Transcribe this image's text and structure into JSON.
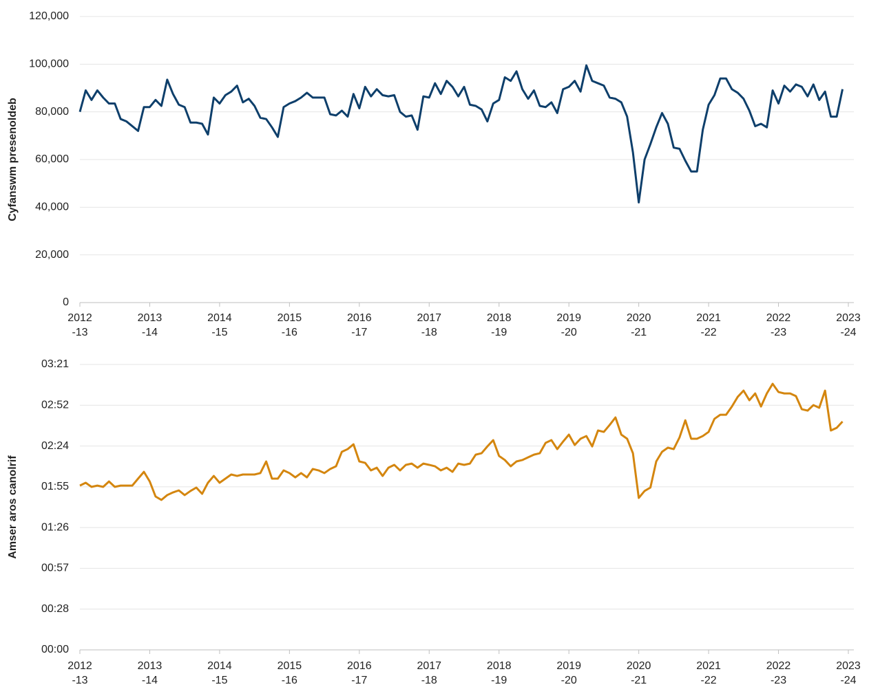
{
  "chart_data": [
    {
      "type": "line",
      "ylabel": "Cyfanswm presenoldeb",
      "xlim": [
        0,
        132
      ],
      "xticks": [
        {
          "value": 0,
          "label": "2012-13"
        },
        {
          "value": 12,
          "label": "2013-14"
        },
        {
          "value": 24,
          "label": "2014-15"
        },
        {
          "value": 36,
          "label": "2015-16"
        },
        {
          "value": 48,
          "label": "2016-17"
        },
        {
          "value": 60,
          "label": "2017-18"
        },
        {
          "value": 72,
          "label": "2018-19"
        },
        {
          "value": 84,
          "label": "2019-20"
        },
        {
          "value": 96,
          "label": "2020-21"
        },
        {
          "value": 108,
          "label": "2021-22"
        },
        {
          "value": 120,
          "label": "2022-23"
        },
        {
          "value": 132,
          "label": "2023-24"
        }
      ],
      "ylim": [
        0,
        120000
      ],
      "yticks": [
        0,
        {
          "value": 20000,
          "label": "20,000"
        },
        {
          "value": 40000,
          "label": "40,000"
        },
        {
          "value": 60000,
          "label": "60,000"
        },
        {
          "value": 80000,
          "label": "80,000"
        },
        {
          "value": 100000,
          "label": "100,000"
        },
        {
          "value": 120000,
          "label": "120,000"
        }
      ],
      "grid": true,
      "series": [
        {
          "color": "#0e3f6b",
          "values": [
            80000,
            89000,
            85000,
            89000,
            86000,
            83500,
            83500,
            77000,
            76000,
            74000,
            72000,
            82000,
            82000,
            85000,
            82500,
            93500,
            87500,
            83000,
            82000,
            75500,
            75500,
            75000,
            70500,
            86000,
            83500,
            87000,
            88500,
            91000,
            84000,
            85500,
            82500,
            77500,
            77000,
            73500,
            69500,
            82000,
            83500,
            84500,
            86000,
            88000,
            86000,
            86000,
            86000,
            79000,
            78500,
            80500,
            78000,
            87500,
            81500,
            90500,
            86500,
            89500,
            87000,
            86500,
            87000,
            80000,
            78000,
            78500,
            72500,
            86500,
            86000,
            92000,
            87500,
            93000,
            90500,
            86500,
            90500,
            83000,
            82500,
            81000,
            76000,
            83500,
            85000,
            94500,
            93000,
            97000,
            89500,
            85500,
            89000,
            82500,
            82000,
            84000,
            79500,
            89500,
            90500,
            93000,
            88500,
            99500,
            93000,
            92000,
            91000,
            86000,
            85500,
            84000,
            78000,
            63000,
            42000,
            60000,
            66500,
            73500,
            79500,
            75000,
            65000,
            64500,
            59500,
            55000,
            55000,
            72500,
            83000,
            87000,
            94000,
            94000,
            89500,
            88000,
            85500,
            80500,
            74000,
            75000,
            73500,
            89000,
            83500,
            91000,
            88500,
            91500,
            90500,
            86500,
            91500,
            85000,
            88500,
            78000,
            78000,
            89500
          ]
        }
      ]
    },
    {
      "type": "line",
      "ylabel": "Amser aros canolrif",
      "xlim": [
        0,
        132
      ],
      "xticks": [
        {
          "value": 0,
          "label": "2012-13"
        },
        {
          "value": 12,
          "label": "2013-14"
        },
        {
          "value": 24,
          "label": "2014-15"
        },
        {
          "value": 36,
          "label": "2015-16"
        },
        {
          "value": 48,
          "label": "2016-17"
        },
        {
          "value": 60,
          "label": "2017-18"
        },
        {
          "value": 72,
          "label": "2018-19"
        },
        {
          "value": 84,
          "label": "2019-20"
        },
        {
          "value": 96,
          "label": "2020-21"
        },
        {
          "value": 108,
          "label": "2021-22"
        },
        {
          "value": 120,
          "label": "2022-23"
        },
        {
          "value": 132,
          "label": "2023-24"
        }
      ],
      "ylim": [
        0,
        201
      ],
      "yticks": [
        {
          "value": 0,
          "label": "00:00"
        },
        {
          "value": 28.714,
          "label": "00:28"
        },
        {
          "value": 57.429,
          "label": "00:57"
        },
        {
          "value": 86.143,
          "label": "01:26"
        },
        {
          "value": 114.857,
          "label": "01:55"
        },
        {
          "value": 143.571,
          "label": "02:24"
        },
        {
          "value": 172.286,
          "label": "02:52"
        },
        {
          "value": 201,
          "label": "03:21"
        }
      ],
      "grid": true,
      "series": [
        {
          "color": "#d4860f",
          "values": [
            115.7,
            117.7,
            114.8,
            115.7,
            114.8,
            118.6,
            114.8,
            115.7,
            115.7,
            115.7,
            120.6,
            125.4,
            118.6,
            108,
            105.6,
            109,
            110.9,
            112.3,
            109,
            111.9,
            114.3,
            109.9,
            117.7,
            122.5,
            117.7,
            120.6,
            123.5,
            122.5,
            123.5,
            123.5,
            123.5,
            124.5,
            132.7,
            120.6,
            120.6,
            126.4,
            124.5,
            121.5,
            124.5,
            121.5,
            127.4,
            126.4,
            124.5,
            127.4,
            129.3,
            139.5,
            141.4,
            144.8,
            132.7,
            131.7,
            126.4,
            128.3,
            122.5,
            128.3,
            130.3,
            126.4,
            130.3,
            131.2,
            128.3,
            131.2,
            130.3,
            129.3,
            126.4,
            128.3,
            125.4,
            131.2,
            130.3,
            131.2,
            137.5,
            138.5,
            143.3,
            147.7,
            136.6,
            133.7,
            129.3,
            132.7,
            133.7,
            135.6,
            137.5,
            138.5,
            145.8,
            147.7,
            141.4,
            146.7,
            151.6,
            144.3,
            148.7,
            150.6,
            143.3,
            154.5,
            153.5,
            158.4,
            163.7,
            151.6,
            148.7,
            138.5,
            107,
            111.9,
            114.3,
            132.7,
            139.5,
            142.4,
            141.4,
            149.6,
            161.7,
            148.7,
            148.7,
            150.6,
            153.5,
            162.7,
            165.6,
            165.6,
            171.4,
            178.2,
            182.6,
            175.8,
            180.6,
            171.4,
            180.6,
            187.4,
            181.6,
            180.6,
            180.6,
            178.7,
            169.5,
            168.5,
            172.4,
            170.5,
            182.6,
            154.5,
            156.4,
            160.8
          ]
        }
      ]
    }
  ]
}
